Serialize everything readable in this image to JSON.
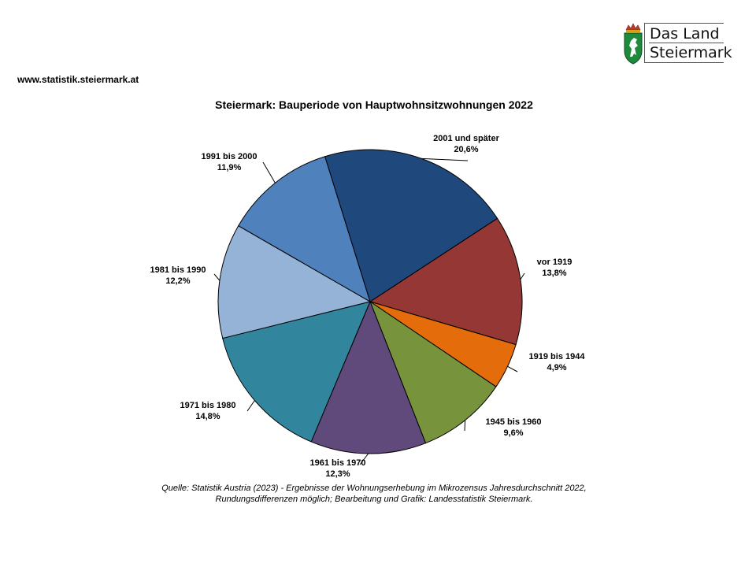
{
  "header": {
    "url": "www.statistik.steiermark.at",
    "logo": {
      "line1": "Das Land",
      "line2": "Steiermark"
    }
  },
  "chart_data": {
    "type": "pie",
    "title": "Steiermark: Bauperiode von Hauptwohnsitzwohnungen 2022",
    "slices": [
      {
        "label": "vor 1919",
        "value": 13.8,
        "value_label": "13,8%",
        "color": "#953735"
      },
      {
        "label": "1919 bis 1944",
        "value": 4.9,
        "value_label": "4,9%",
        "color": "#E46C0A"
      },
      {
        "label": "1945 bis 1960",
        "value": 9.6,
        "value_label": "9,6%",
        "color": "#77933C"
      },
      {
        "label": "1961 bis 1970",
        "value": 12.3,
        "value_label": "12,3%",
        "color": "#604A7B"
      },
      {
        "label": "1971 bis 1980",
        "value": 14.8,
        "value_label": "14,8%",
        "color": "#31859C"
      },
      {
        "label": "1981 bis 1990",
        "value": 12.2,
        "value_label": "12,2%",
        "color": "#95B3D7"
      },
      {
        "label": "1991 bis 2000",
        "value": 11.9,
        "value_label": "11,9%",
        "color": "#4F81BD"
      },
      {
        "label": "2001 und später",
        "value": 20.6,
        "value_label": "20,6%",
        "color": "#1F497D"
      }
    ]
  },
  "footer": {
    "source_line1": "Quelle: Statistik Austria (2023) - Ergebnisse der Wohnungserhebung im Mikrozensus Jahresdurchschnitt 2022,",
    "source_line2": "Rundungsdifferenzen möglich; Bearbeitung und Grafik: Landesstatistik Steiermark."
  }
}
